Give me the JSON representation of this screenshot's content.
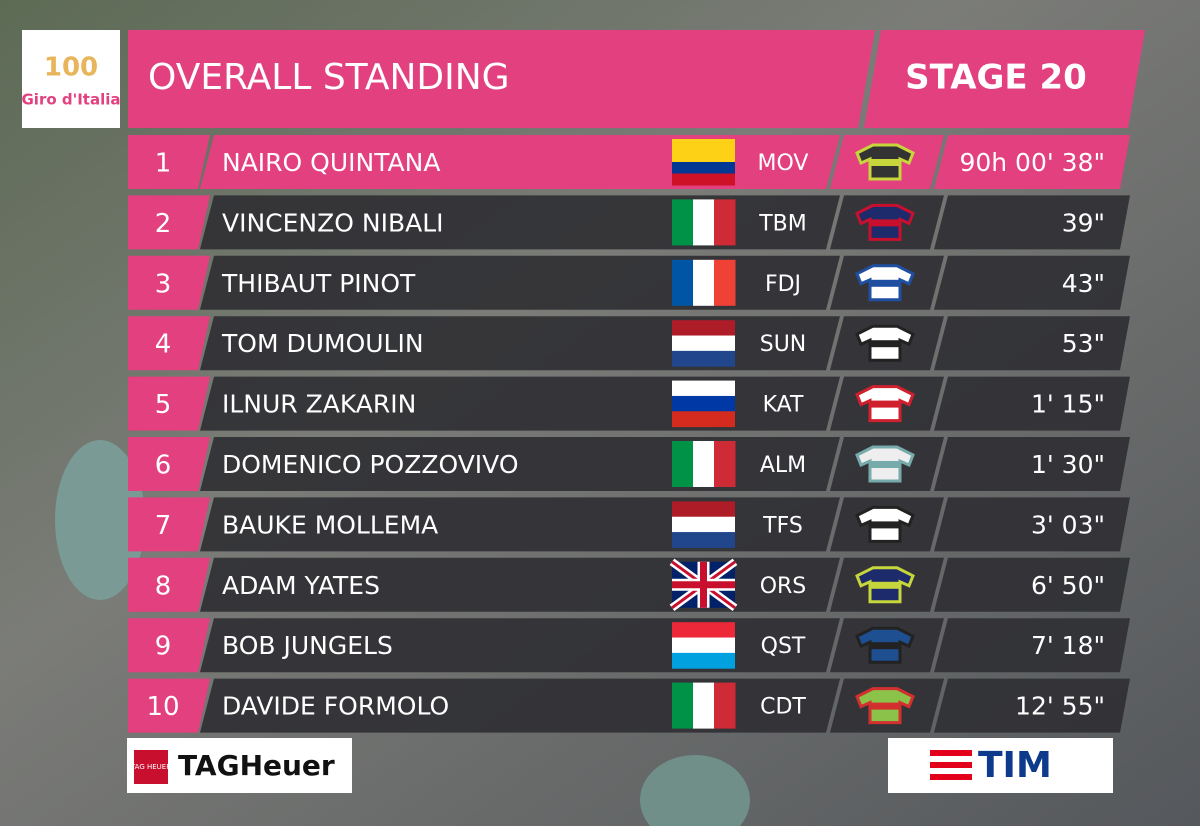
{
  "logo": {
    "number": "100",
    "text": "Giro d'Italia"
  },
  "header": {
    "title": "OVERALL STANDING",
    "stage": "STAGE 20"
  },
  "standings": {
    "rows": [
      {
        "rank": "1",
        "name": "NAIRO QUINTANA",
        "team": "MOV",
        "time": "90h 00' 38\""
      },
      {
        "rank": "2",
        "name": "VINCENZO NIBALI",
        "team": "TBM",
        "time": "39\""
      },
      {
        "rank": "3",
        "name": "THIBAUT PINOT",
        "team": "FDJ",
        "time": "43\""
      },
      {
        "rank": "4",
        "name": "TOM DUMOULIN",
        "team": "SUN",
        "time": "53\""
      },
      {
        "rank": "5",
        "name": "ILNUR ZAKARIN",
        "team": "KAT",
        "time": "1' 15\""
      },
      {
        "rank": "6",
        "name": "DOMENICO POZZOVIVO",
        "team": "ALM",
        "time": "1' 30\""
      },
      {
        "rank": "7",
        "name": "BAUKE MOLLEMA",
        "team": "TFS",
        "time": "3' 03\""
      },
      {
        "rank": "8",
        "name": "ADAM YATES",
        "team": "ORS",
        "time": "6' 50\""
      },
      {
        "rank": "9",
        "name": "BOB JUNGELS",
        "team": "QST",
        "time": "7' 18\""
      },
      {
        "rank": "10",
        "name": "DAVIDE FORMOLO",
        "team": "CDT",
        "time": "12' 55\""
      }
    ]
  },
  "sponsors": {
    "left": "TAGHeuer",
    "left_badge": "TAG HEUER",
    "right": "TIM"
  }
}
